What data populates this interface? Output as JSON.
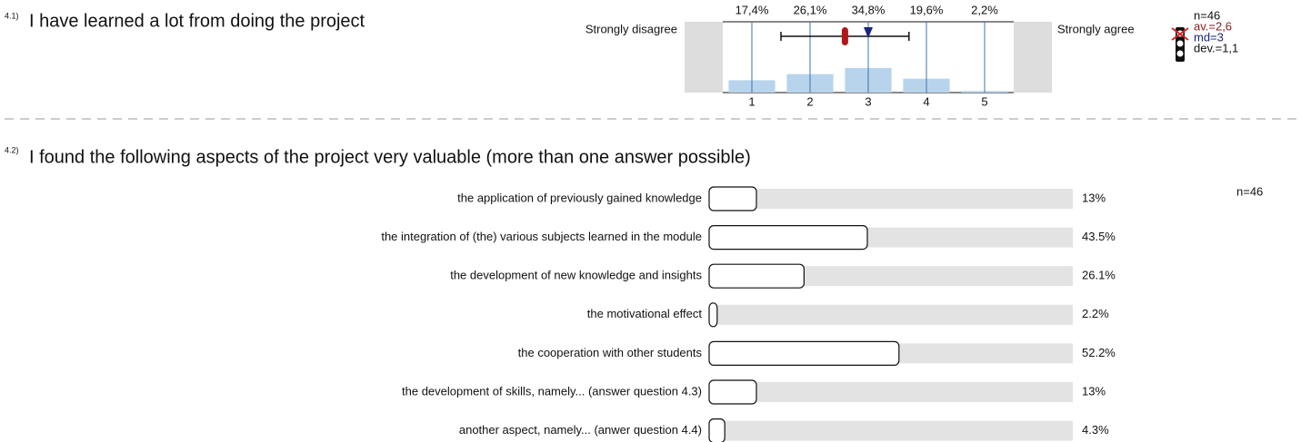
{
  "chart_data": [
    {
      "type": "likert",
      "number": "4.1)",
      "title": "I have learned a lot from doing the project",
      "left_label": "Strongly disagree",
      "right_label": "Strongly agree",
      "xticks": [
        1,
        2,
        3,
        4,
        5
      ],
      "xlim": [
        0.5,
        5.5
      ],
      "ylim": [
        0,
        100
      ],
      "values": [
        17.4,
        26.1,
        34.8,
        19.6,
        2.2
      ],
      "value_labels": [
        "17,4%",
        "26,1%",
        "34,8%",
        "19,6%",
        "2,2%"
      ],
      "color": "#b8d4ec",
      "line_color": "#3a75b0",
      "mean": 2.6,
      "median": 3,
      "deviation": 1.1,
      "n_label": "n=46",
      "mean_label": "av.=2,6",
      "median_label": "md=3",
      "deviation_label": "dev.=1,1"
    },
    {
      "type": "hbar",
      "number": "4.2)",
      "title": "I found the following aspects of the project very valuable (more than one answer possible)",
      "categories": [
        "the application of previously gained knowledge",
        "the integration of (the) various subjects learned in the module",
        "the development of new knowledge and insights",
        "the motivational effect",
        "the cooperation with other students",
        "the development of skills, namely... (answer question 4.3)",
        "another aspect, namely... (anwer question 4.4)"
      ],
      "values": [
        13,
        43.5,
        26.1,
        2.2,
        52.2,
        13,
        4.3
      ],
      "value_labels": [
        "13%",
        "43.5%",
        "26.1%",
        "2.2%",
        "52.2%",
        "13%",
        "4.3%"
      ],
      "xlim": [
        0,
        100
      ],
      "n_label": "n=46"
    }
  ]
}
